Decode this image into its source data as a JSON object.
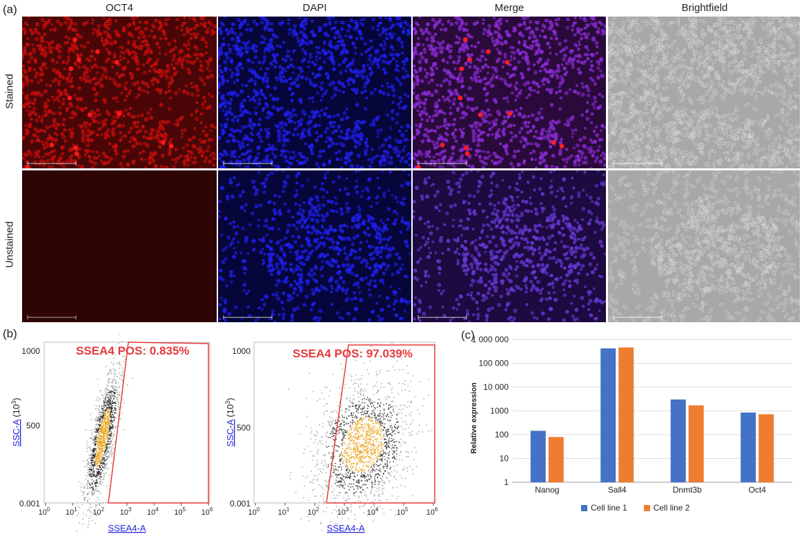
{
  "panel_a": {
    "label": "(a)",
    "column_titles": [
      "OCT4",
      "DAPI",
      "Merge",
      "Brightfield"
    ],
    "row_titles": [
      "Stained",
      "Unstained"
    ],
    "image_colors": {
      "oct4": "#c40d0d",
      "oct4_bg": "#4a0606",
      "dapi": "#1f1fee",
      "dapi_bg": "#06063a",
      "merge": "#8a2bd6",
      "merge_bg": "#2a0a3a",
      "bright_bg": "#a8a8a8",
      "bright_cell": "#d6d6d6"
    }
  },
  "panel_b": {
    "label": "(b)",
    "plots": [
      {
        "gate_label": "SSEA4 POS: 0.835%",
        "xlabel": "SSEA4-A",
        "ylabel": "SSC-A",
        "ylabel_sup": "(10",
        "ylabel_sup2": "3",
        "ylabel_close": ")",
        "y_ticks": [
          "1000",
          "500",
          "0.001"
        ]
      },
      {
        "gate_label": "SSEA4 POS: 97.039%",
        "xlabel": "SSEA4-A",
        "ylabel": "SSC-A",
        "ylabel_sup": "(10",
        "ylabel_sup2": "3",
        "ylabel_close": ")",
        "y_ticks": [
          "1000",
          "500",
          "0.001"
        ]
      }
    ],
    "x_ticks": [
      "10",
      "10",
      "10",
      "10",
      "10",
      "10",
      "10"
    ],
    "x_tick_exps": [
      "0",
      "1",
      "2",
      "3",
      "4",
      "5",
      "6"
    ],
    "gate_color": "#e8383d"
  },
  "chart_data": {
    "type": "bar",
    "label": "(c)",
    "categories": [
      "Nanog",
      "Sall4",
      "Dnmt3b",
      "Oct4"
    ],
    "series": [
      {
        "name": "Cell line 1",
        "values": [
          145,
          420000,
          3000,
          850
        ],
        "color": "#4472c4"
      },
      {
        "name": "Cell line 2",
        "values": [
          80,
          460000,
          1700,
          720
        ],
        "color": "#ed7d31"
      }
    ],
    "ylabel": "Relative expression",
    "y_scale": "log",
    "ylim": [
      1,
      1000000
    ],
    "y_tick_labels": [
      "1 000 000",
      "100 000",
      "10 000",
      "1000",
      "100",
      "10",
      "1"
    ],
    "grid": true,
    "legend_position": "bottom"
  }
}
